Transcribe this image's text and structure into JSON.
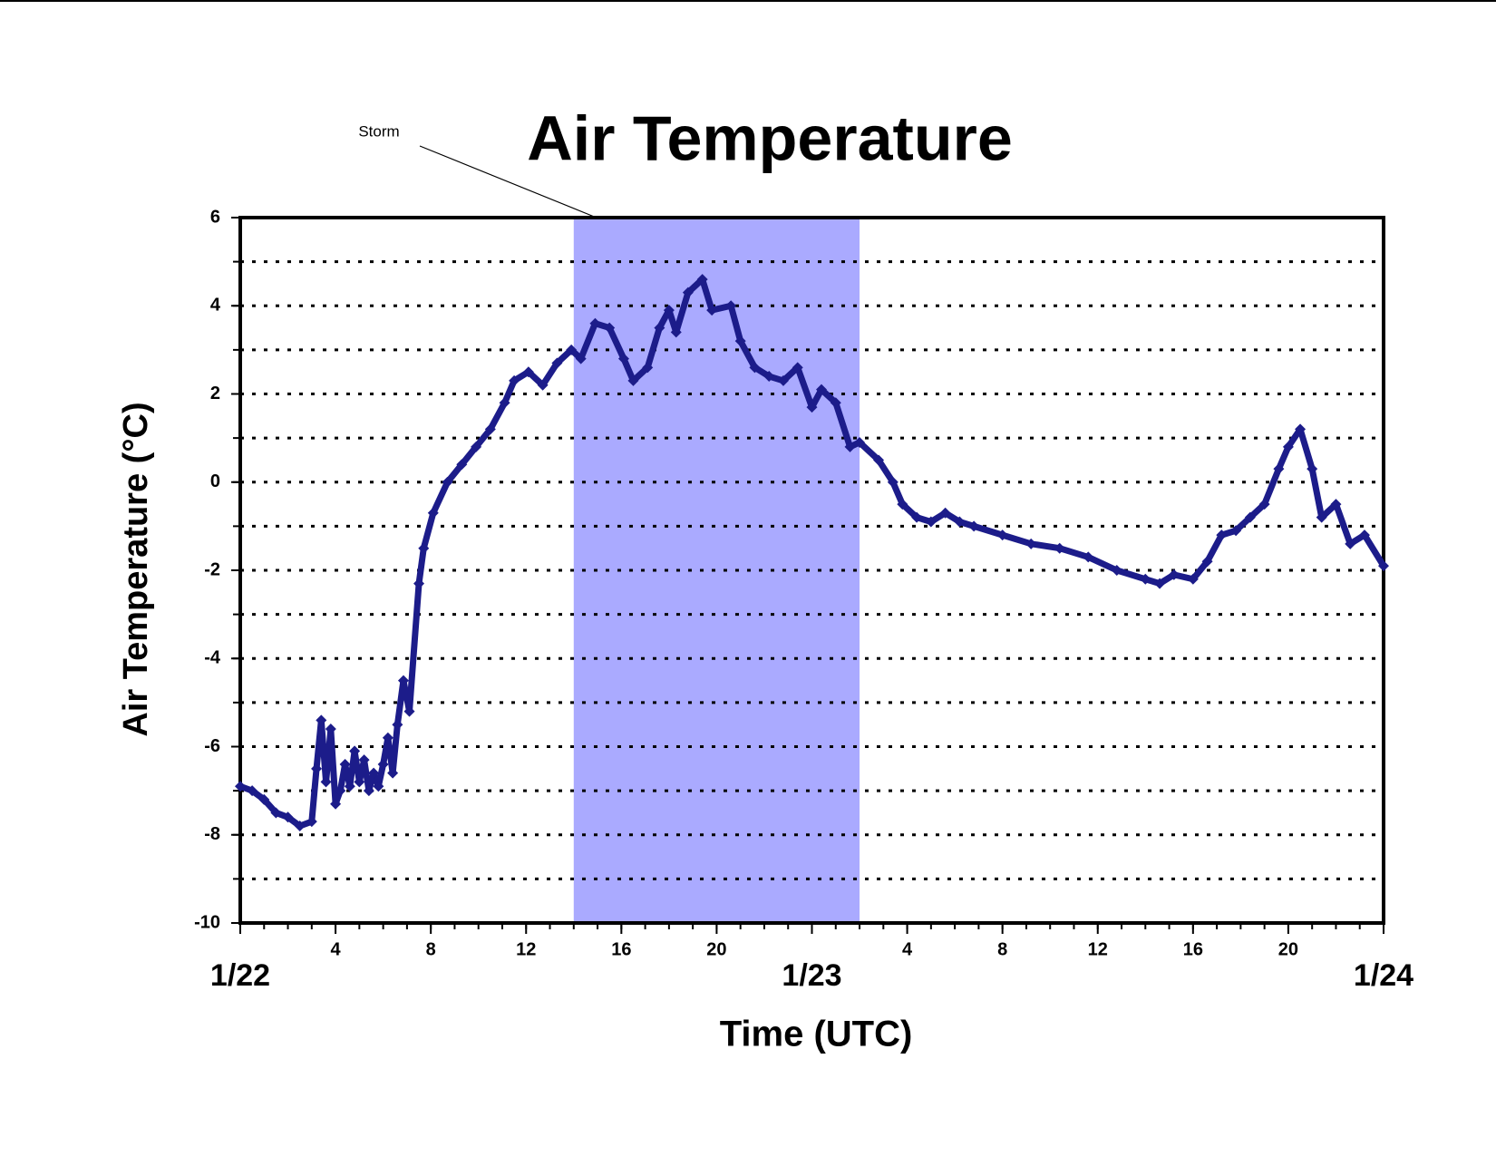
{
  "chart_data": {
    "type": "scatter",
    "title": "Air Temperature",
    "xlabel": "Time (UTC)",
    "ylabel": "Air Temperature (°C)",
    "color": "#1c1c8a",
    "x": [
      0,
      0.5,
      1,
      1.5,
      2,
      2.5,
      3,
      3.2,
      3.4,
      3.6,
      3.8,
      4,
      4.2,
      4.4,
      4.6,
      4.8,
      5,
      5.2,
      5.4,
      5.6,
      5.8,
      6,
      6.2,
      6.4,
      6.6,
      6.85,
      7.1,
      7.5,
      7.7,
      8.1,
      8.7,
      9.3,
      9.9,
      10.5,
      11.1,
      11.5,
      12.1,
      12.7,
      13.3,
      13.9,
      14.3,
      14.9,
      15.5,
      16.1,
      16.5,
      17.1,
      17.6,
      18,
      18.3,
      18.8,
      19.4,
      19.8,
      20.6,
      21,
      21.6,
      22.2,
      22.8,
      23.4,
      24,
      24.4,
      25,
      25.6,
      26,
      26.8,
      27.4,
      27.8,
      28.4,
      29,
      29.6,
      30.2,
      30.8,
      32,
      33.2,
      34.4,
      35.6,
      36.8,
      38,
      38.6,
      39.2,
      40,
      40.6,
      41.2,
      41.8,
      42.4,
      43,
      43.6,
      44,
      44.5,
      45,
      45.4,
      46,
      46.6,
      47.2,
      48
    ],
    "values": [
      -6.9,
      -7.0,
      -7.2,
      -7.5,
      -7.6,
      -7.8,
      -7.7,
      -6.5,
      -5.4,
      -6.8,
      -5.6,
      -7.3,
      -7.0,
      -6.4,
      -6.9,
      -6.1,
      -6.8,
      -6.3,
      -7.0,
      -6.6,
      -6.9,
      -6.4,
      -5.8,
      -6.6,
      -5.5,
      -4.5,
      -5.2,
      -2.3,
      -1.5,
      -0.7,
      0.0,
      0.4,
      0.8,
      1.2,
      1.8,
      2.3,
      2.5,
      2.2,
      2.7,
      3.0,
      2.8,
      3.6,
      3.5,
      2.8,
      2.3,
      2.6,
      3.5,
      3.9,
      3.4,
      4.3,
      4.6,
      3.9,
      4.0,
      3.2,
      2.6,
      2.4,
      2.3,
      2.6,
      1.7,
      2.1,
      1.8,
      0.8,
      0.9,
      0.5,
      0.0,
      -0.5,
      -0.8,
      -0.9,
      -0.7,
      -0.9,
      -1.0,
      -1.2,
      -1.4,
      -1.5,
      -1.7,
      -2.0,
      -2.2,
      -2.3,
      -2.1,
      -2.2,
      -1.8,
      -1.2,
      -1.1,
      -0.8,
      -0.5,
      0.3,
      0.8,
      1.2,
      0.3,
      -0.8,
      -0.5,
      -1.4,
      -1.2,
      -1.9
    ],
    "xlim": [
      0,
      48
    ],
    "ylim": [
      -10,
      6
    ],
    "yticks": [
      -10,
      -8,
      -6,
      -4,
      -2,
      0,
      2,
      4,
      6
    ],
    "ygrid": [
      -9,
      -8,
      -7,
      -6,
      -5,
      -4,
      -3,
      -2,
      -1,
      0,
      1,
      2,
      3,
      4,
      5
    ],
    "xticks": [
      4,
      8,
      12,
      16,
      20,
      {
        "value": 28,
        "label": "4"
      },
      {
        "value": 32,
        "label": "8"
      },
      {
        "value": 36,
        "label": "12"
      },
      {
        "value": 40,
        "label": "16"
      },
      {
        "value": 44,
        "label": "20"
      }
    ],
    "date_ticks": [
      {
        "value": 0,
        "label": "1/22"
      },
      {
        "value": 24,
        "label": "1/23"
      },
      {
        "value": 48,
        "label": "1/24"
      }
    ],
    "shaded_region": {
      "x": [
        14,
        26
      ],
      "label": "Storm",
      "color": "#aaaaff"
    }
  }
}
